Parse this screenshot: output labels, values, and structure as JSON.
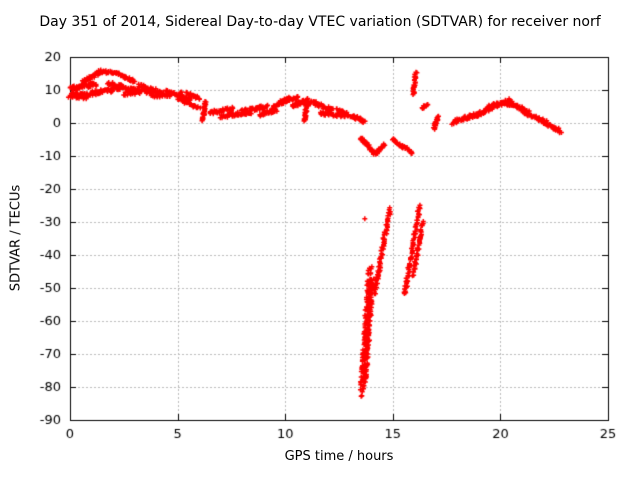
{
  "chart_data": {
    "type": "scatter",
    "title": "Day 351 of 2014, Sidereal Day-to-day VTEC variation (SDTVAR) for receiver norf",
    "xlabel": "GPS time / hours",
    "ylabel": "SDTVAR / TECUs",
    "xlim": [
      0,
      25
    ],
    "ylim": [
      -90,
      20
    ],
    "xticks": [
      0,
      5,
      10,
      15,
      20,
      25
    ],
    "yticks": [
      20,
      10,
      0,
      -10,
      -20,
      -30,
      -40,
      -50,
      -60,
      -70,
      -80,
      -90
    ],
    "grid": true,
    "legend": "none",
    "marker": "plus",
    "marker_size": 5,
    "marker_color": "#ff0000",
    "grid_color": "#bbbbbb",
    "axis_color": "#000000",
    "background": "#ffffff",
    "strands": [
      [
        0.0,
        8.5,
        0.9,
        8.0,
        60,
        0.15,
        1.6
      ],
      [
        0.0,
        10.5,
        1.2,
        11.5,
        50,
        0.15,
        1.4
      ],
      [
        0.6,
        12.5,
        1.4,
        15.5,
        35,
        0.12,
        1.0
      ],
      [
        1.3,
        15.8,
        2.2,
        15.0,
        30,
        0.12,
        0.9
      ],
      [
        1.0,
        9.0,
        2.3,
        10.5,
        50,
        0.15,
        1.4
      ],
      [
        1.8,
        12.0,
        3.2,
        9.5,
        45,
        0.12,
        1.2
      ],
      [
        2.2,
        15.0,
        3.0,
        12.5,
        30,
        0.12,
        0.9
      ],
      [
        2.5,
        9.0,
        4.0,
        9.8,
        45,
        0.15,
        1.3
      ],
      [
        3.2,
        11.5,
        4.3,
        9.0,
        35,
        0.12,
        1.0
      ],
      [
        3.8,
        8.0,
        5.2,
        8.8,
        40,
        0.15,
        1.2
      ],
      [
        4.5,
        9.5,
        5.6,
        7.0,
        35,
        0.12,
        1.0
      ],
      [
        5.0,
        7.5,
        6.0,
        4.5,
        35,
        0.12,
        1.0
      ],
      [
        5.4,
        9.0,
        6.0,
        7.5,
        25,
        0.1,
        0.8
      ],
      [
        6.18,
        0.5,
        6.28,
        6.5,
        30,
        0.1,
        0.5
      ],
      [
        6.5,
        3.0,
        7.6,
        4.5,
        40,
        0.15,
        1.1
      ],
      [
        7.0,
        2.0,
        8.4,
        3.2,
        40,
        0.15,
        1.1
      ],
      [
        8.0,
        3.5,
        9.2,
        5.0,
        40,
        0.15,
        1.1
      ],
      [
        8.8,
        2.5,
        9.6,
        4.0,
        30,
        0.12,
        0.9
      ],
      [
        9.4,
        4.5,
        10.2,
        7.5,
        40,
        0.12,
        1.0
      ],
      [
        9.8,
        6.5,
        10.6,
        7.8,
        30,
        0.12,
        0.9
      ],
      [
        10.3,
        5.0,
        11.0,
        7.0,
        30,
        0.12,
        0.9
      ],
      [
        10.92,
        0.5,
        11.02,
        7.5,
        35,
        0.1,
        0.5
      ],
      [
        11.1,
        6.5,
        12.2,
        4.0,
        40,
        0.15,
        1.1
      ],
      [
        11.6,
        3.0,
        12.8,
        2.2,
        35,
        0.15,
        1.0
      ],
      [
        12.4,
        4.0,
        13.3,
        1.5,
        35,
        0.12,
        1.0
      ],
      [
        13.2,
        2.0,
        13.7,
        0.3,
        25,
        0.1,
        0.8
      ],
      [
        13.5,
        -4.5,
        14.2,
        -9.5,
        35,
        0.12,
        0.9
      ],
      [
        14.25,
        -9.0,
        14.6,
        -6.5,
        20,
        0.1,
        0.7
      ],
      [
        15.0,
        -5.0,
        15.5,
        -7.5,
        20,
        0.1,
        0.7
      ],
      [
        15.5,
        -7.0,
        15.9,
        -9.2,
        18,
        0.1,
        0.7
      ],
      [
        13.55,
        -82.0,
        13.95,
        -44.0,
        130,
        0.18,
        2.0
      ],
      [
        13.7,
        -79.0,
        14.05,
        -48.0,
        90,
        0.15,
        2.0
      ],
      [
        14.15,
        -52.0,
        14.85,
        -26.0,
        70,
        0.12,
        1.4
      ],
      [
        15.55,
        -52.0,
        16.25,
        -25.0,
        70,
        0.12,
        1.4
      ],
      [
        15.95,
        -46.0,
        16.4,
        -30.0,
        45,
        0.1,
        1.2
      ],
      [
        15.95,
        8.5,
        16.08,
        15.5,
        25,
        0.1,
        0.6
      ],
      [
        16.35,
        4.5,
        16.6,
        5.5,
        12,
        0.1,
        0.6
      ],
      [
        16.9,
        -2.0,
        17.1,
        2.0,
        22,
        0.1,
        0.5
      ],
      [
        17.8,
        0.2,
        18.9,
        2.5,
        45,
        0.15,
        1.1
      ],
      [
        18.8,
        2.0,
        19.7,
        5.0,
        45,
        0.15,
        1.1
      ],
      [
        19.5,
        5.0,
        20.5,
        6.8,
        50,
        0.15,
        1.2
      ],
      [
        20.3,
        6.0,
        21.3,
        3.5,
        45,
        0.15,
        1.1
      ],
      [
        21.1,
        3.0,
        22.1,
        0.5,
        40,
        0.15,
        1.1
      ],
      [
        21.9,
        0.5,
        22.8,
        -2.5,
        40,
        0.15,
        1.1
      ]
    ],
    "points": [
      [
        13.7,
        -29.0
      ]
    ]
  }
}
